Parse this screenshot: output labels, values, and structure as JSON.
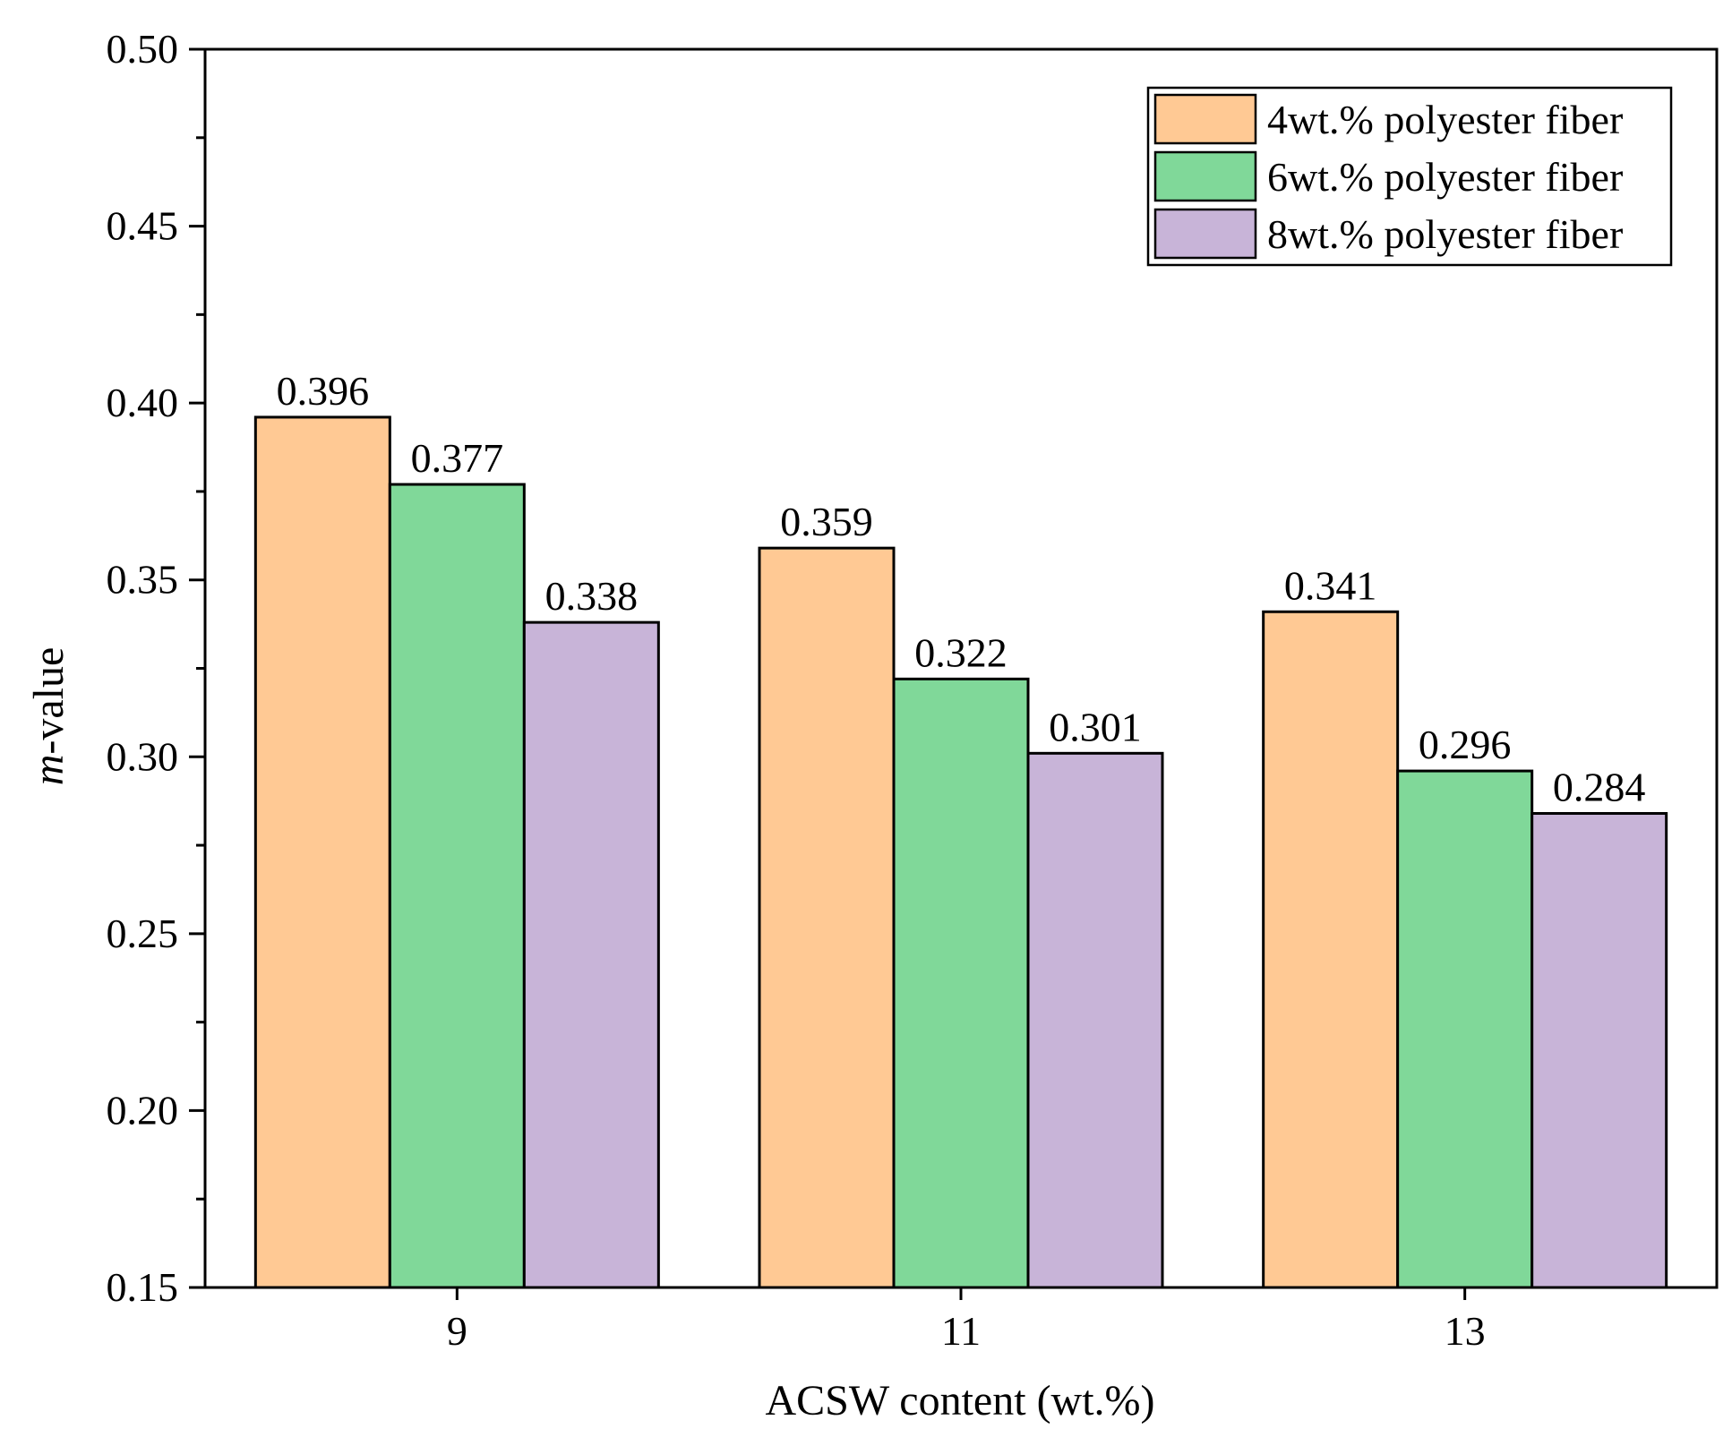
{
  "chart_data": {
    "type": "bar",
    "title": "",
    "xlabel": "ACSW content (wt.%)",
    "ylabel_italic": "m",
    "ylabel_rest": "-value",
    "categories": [
      "9",
      "11",
      "13"
    ],
    "series": [
      {
        "name": "4wt.% polyester fiber",
        "color": "#FFC994",
        "values": [
          0.396,
          0.359,
          0.341
        ],
        "labels": [
          "0.396",
          "0.359",
          "0.341"
        ]
      },
      {
        "name": "6wt.% polyester fiber",
        "color": "#80D899",
        "values": [
          0.377,
          0.322,
          0.296
        ],
        "labels": [
          "0.377",
          "0.322",
          "0.296"
        ]
      },
      {
        "name": "8wt.% polyester fiber",
        "color": "#C8B4D8",
        "values": [
          0.338,
          0.301,
          0.284
        ],
        "labels": [
          "0.338",
          "0.301",
          "0.284"
        ]
      }
    ],
    "ylim": [
      0.15,
      0.5
    ],
    "yticks": [
      "0.15",
      "0.20",
      "0.25",
      "0.30",
      "0.35",
      "0.40",
      "0.45",
      "0.50"
    ],
    "ytick_values": [
      0.15,
      0.2,
      0.25,
      0.3,
      0.35,
      0.4,
      0.45,
      0.5
    ],
    "legend_position": "top-right",
    "grid": false
  }
}
